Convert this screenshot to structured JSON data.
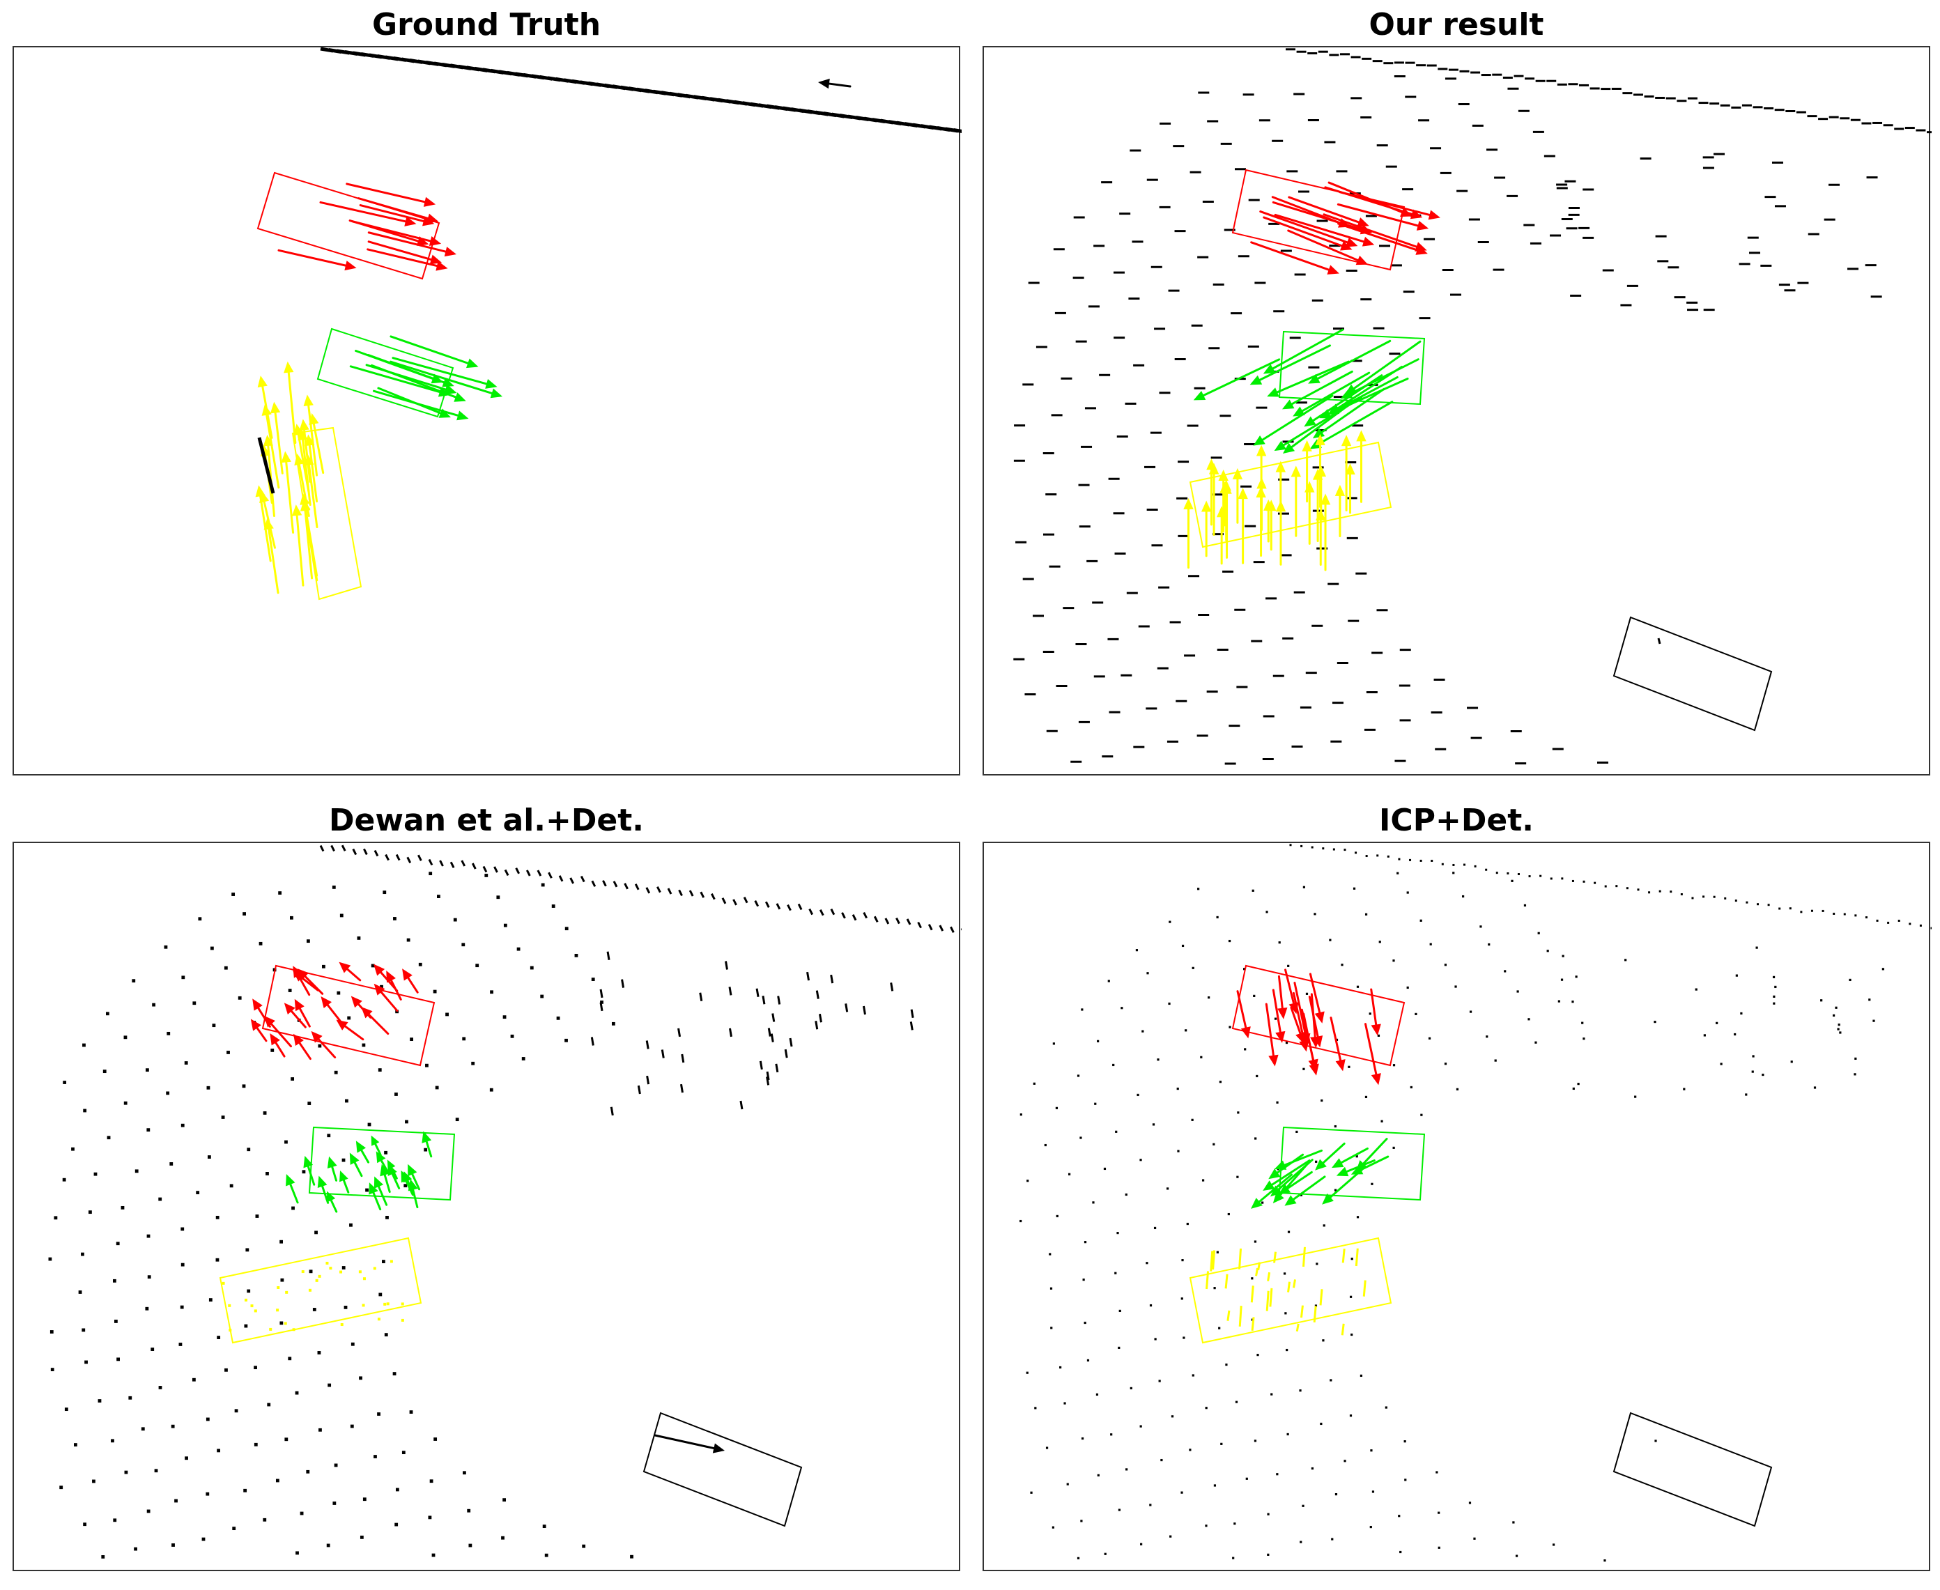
{
  "panels": [
    {
      "id": "gt",
      "title": "Ground Truth"
    },
    {
      "id": "ours",
      "title": "Our result"
    },
    {
      "id": "dewan",
      "title": "Dewan et al.+Det."
    },
    {
      "id": "icp",
      "title": "ICP+Det."
    }
  ],
  "colors": {
    "red": "#ff0000",
    "green": "#00ee00",
    "yellow": "#ffff00",
    "black": "#000000",
    "frame": "#333333"
  }
}
